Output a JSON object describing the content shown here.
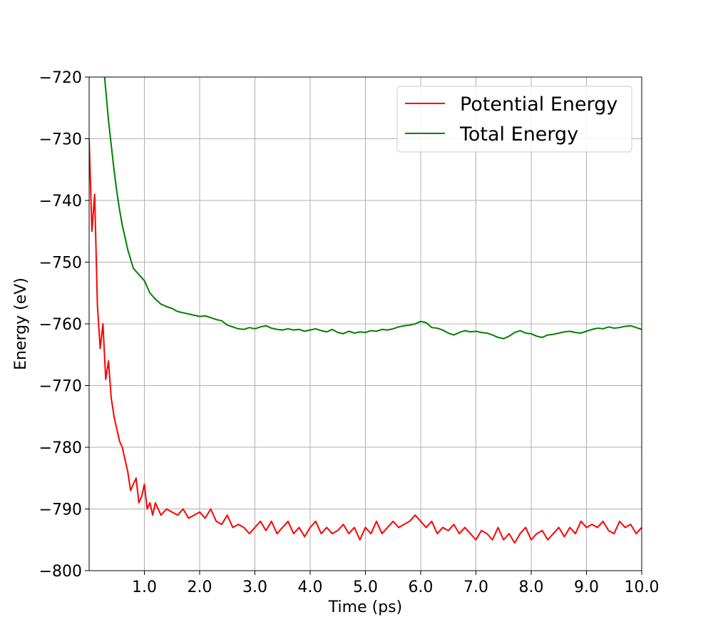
{
  "chart_data": {
    "type": "line",
    "title": "",
    "xlabel": "Time (ps)",
    "ylabel": "Energy (eV)",
    "xlim": [
      0.0,
      10.0
    ],
    "ylim": [
      -800,
      -720
    ],
    "xticks": [
      1.0,
      2.0,
      3.0,
      4.0,
      5.0,
      6.0,
      7.0,
      8.0,
      9.0,
      10.0
    ],
    "xtick_labels": [
      "1.0",
      "2.0",
      "3.0",
      "4.0",
      "5.0",
      "6.0",
      "7.0",
      "8.0",
      "9.0",
      "10.0"
    ],
    "yticks": [
      -800,
      -790,
      -780,
      -770,
      -760,
      -750,
      -740,
      -730,
      -720
    ],
    "ytick_labels": [
      "−800",
      "−790",
      "−780",
      "−770",
      "−760",
      "−750",
      "−740",
      "−730",
      "−720"
    ],
    "grid": true,
    "legend_position": "top-right",
    "series": [
      {
        "name": "Potential Energy",
        "color": "#ff0000",
        "x": [
          0.0,
          0.05,
          0.1,
          0.15,
          0.2,
          0.25,
          0.3,
          0.35,
          0.4,
          0.45,
          0.5,
          0.55,
          0.6,
          0.65,
          0.7,
          0.75,
          0.8,
          0.85,
          0.9,
          0.95,
          1.0,
          1.05,
          1.1,
          1.15,
          1.2,
          1.3,
          1.4,
          1.5,
          1.6,
          1.7,
          1.8,
          1.9,
          2.0,
          2.1,
          2.2,
          2.3,
          2.4,
          2.5,
          2.6,
          2.7,
          2.8,
          2.9,
          3.0,
          3.1,
          3.2,
          3.3,
          3.4,
          3.5,
          3.6,
          3.7,
          3.8,
          3.9,
          4.0,
          4.1,
          4.2,
          4.3,
          4.4,
          4.5,
          4.6,
          4.7,
          4.8,
          4.9,
          5.0,
          5.1,
          5.2,
          5.3,
          5.4,
          5.5,
          5.6,
          5.7,
          5.8,
          5.9,
          6.0,
          6.1,
          6.2,
          6.3,
          6.4,
          6.5,
          6.6,
          6.7,
          6.8,
          6.9,
          7.0,
          7.1,
          7.2,
          7.3,
          7.4,
          7.5,
          7.6,
          7.7,
          7.8,
          7.9,
          8.0,
          8.1,
          8.2,
          8.3,
          8.4,
          8.5,
          8.6,
          8.7,
          8.8,
          8.9,
          9.0,
          9.1,
          9.2,
          9.3,
          9.4,
          9.5,
          9.6,
          9.7,
          9.8,
          9.9,
          10.0
        ],
        "values": [
          -730,
          -745,
          -739,
          -757,
          -764,
          -760,
          -769,
          -766,
          -772,
          -775,
          -777,
          -779,
          -780,
          -782,
          -784,
          -787,
          -786,
          -785,
          -789,
          -788,
          -786,
          -790,
          -789,
          -791,
          -789,
          -791,
          -790,
          -790.5,
          -791,
          -790,
          -791.5,
          -791,
          -790.5,
          -791.5,
          -790,
          -792,
          -792.5,
          -791,
          -793,
          -792.5,
          -793,
          -794,
          -793,
          -792,
          -793.5,
          -792,
          -794,
          -793,
          -792,
          -794,
          -793,
          -794.5,
          -793,
          -792,
          -794,
          -793,
          -794,
          -793.5,
          -792.5,
          -794,
          -793,
          -795,
          -793,
          -794,
          -792,
          -794,
          -793,
          -792,
          -793,
          -792.5,
          -792,
          -791,
          -792,
          -793,
          -792,
          -794,
          -793,
          -793.5,
          -792.5,
          -794,
          -793,
          -794,
          -795,
          -793.5,
          -794,
          -795,
          -793,
          -795,
          -794,
          -795.5,
          -794,
          -793,
          -795,
          -794,
          -793.5,
          -795,
          -794,
          -793,
          -794.5,
          -793,
          -794,
          -792,
          -793,
          -792.5,
          -793,
          -792,
          -793.5,
          -794,
          -792,
          -793,
          -792.5,
          -794,
          -793
        ]
      },
      {
        "name": "Total Energy",
        "color": "#008000",
        "x": [
          0.28,
          0.3,
          0.35,
          0.4,
          0.45,
          0.5,
          0.55,
          0.6,
          0.65,
          0.7,
          0.75,
          0.8,
          0.9,
          1.0,
          1.1,
          1.2,
          1.3,
          1.4,
          1.5,
          1.6,
          1.7,
          1.8,
          1.9,
          2.0,
          2.1,
          2.2,
          2.3,
          2.4,
          2.5,
          2.6,
          2.7,
          2.8,
          2.9,
          3.0,
          3.1,
          3.2,
          3.3,
          3.4,
          3.5,
          3.6,
          3.7,
          3.8,
          3.9,
          4.0,
          4.1,
          4.2,
          4.3,
          4.4,
          4.5,
          4.6,
          4.7,
          4.8,
          4.9,
          5.0,
          5.1,
          5.2,
          5.3,
          5.4,
          5.5,
          5.6,
          5.7,
          5.8,
          5.9,
          6.0,
          6.1,
          6.2,
          6.3,
          6.4,
          6.5,
          6.6,
          6.7,
          6.8,
          6.9,
          7.0,
          7.1,
          7.2,
          7.3,
          7.4,
          7.5,
          7.6,
          7.7,
          7.8,
          7.9,
          8.0,
          8.1,
          8.2,
          8.3,
          8.4,
          8.5,
          8.6,
          8.7,
          8.8,
          8.9,
          9.0,
          9.1,
          9.2,
          9.3,
          9.4,
          9.5,
          9.6,
          9.7,
          9.8,
          9.9,
          10.0
        ],
        "values": [
          -720,
          -722,
          -727,
          -731,
          -735,
          -738.5,
          -741.5,
          -744,
          -746,
          -748,
          -749.5,
          -751,
          -752,
          -753,
          -755,
          -756,
          -756.8,
          -757.2,
          -757.5,
          -758,
          -758.2,
          -758.4,
          -758.6,
          -758.8,
          -758.7,
          -759,
          -759.3,
          -759.5,
          -760.2,
          -760.5,
          -760.8,
          -760.9,
          -760.6,
          -760.8,
          -760.5,
          -760.3,
          -760.7,
          -760.9,
          -761,
          -760.8,
          -761,
          -760.9,
          -761.2,
          -761,
          -760.8,
          -761.1,
          -761.3,
          -760.9,
          -761.4,
          -761.6,
          -761.2,
          -761.5,
          -761.3,
          -761.4,
          -761.1,
          -761.2,
          -760.9,
          -761,
          -760.8,
          -760.5,
          -760.3,
          -760.2,
          -760,
          -759.6,
          -759.8,
          -760.6,
          -760.7,
          -761,
          -761.5,
          -761.8,
          -761.4,
          -761.1,
          -761.3,
          -761.2,
          -761.4,
          -761.5,
          -761.8,
          -762.2,
          -762.4,
          -762,
          -761.4,
          -761.1,
          -761.5,
          -761.6,
          -762,
          -762.2,
          -761.8,
          -761.7,
          -761.5,
          -761.3,
          -761.2,
          -761.4,
          -761.5,
          -761.2,
          -760.9,
          -760.7,
          -760.8,
          -760.5,
          -760.7,
          -760.6,
          -760.4,
          -760.3,
          -760.6,
          -760.9
        ]
      }
    ]
  }
}
